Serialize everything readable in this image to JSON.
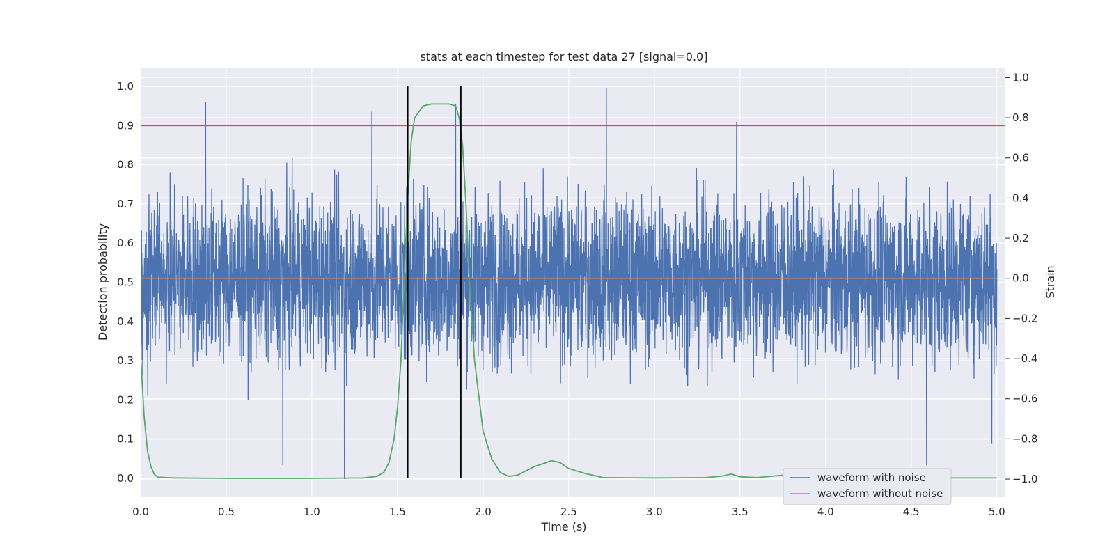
{
  "chart_data": {
    "type": "line",
    "title": "stats at each timestep for test data 27 [signal=0.0]",
    "xlabel": "Time (s)",
    "ylabel_left": "Detection probability",
    "ylabel_right": "Strain",
    "xlim": [
      0.0,
      5.05
    ],
    "ylim_left": [
      -0.048,
      1.048
    ],
    "ylim_right": [
      -1.09,
      1.05
    ],
    "x_ticks": [
      "0.0",
      "0.5",
      "1.0",
      "1.5",
      "2.0",
      "2.5",
      "3.0",
      "3.5",
      "4.0",
      "4.5",
      "5.0"
    ],
    "y_ticks_left": [
      "0.0",
      "0.1",
      "0.2",
      "0.3",
      "0.4",
      "0.5",
      "0.6",
      "0.7",
      "0.8",
      "0.9",
      "1.0"
    ],
    "y_ticks_right": [
      "−1.0",
      "−0.8",
      "−0.6",
      "−0.4",
      "−0.2",
      "0.0",
      "0.2",
      "0.4",
      "0.6",
      "0.8",
      "1.0"
    ],
    "grid": true,
    "legend_position": "lower-right",
    "threshold_line": {
      "axis": "left",
      "y": 0.9,
      "color": "#c44e52"
    },
    "vertical_markers": {
      "x": [
        1.56,
        1.87
      ],
      "color": "#000000"
    },
    "series": [
      {
        "name": "waveform with noise",
        "axis": "right",
        "color": "#4c72b0",
        "description_of_shape": "dense noise between about -0.95 and 1.0 strain",
        "spikes": [
          [
            0.38,
            0.88
          ],
          [
            1.19,
            -1.0
          ],
          [
            1.35,
            0.83
          ],
          [
            1.84,
            0.87
          ],
          [
            2.72,
            0.95
          ],
          [
            3.48,
            0.78
          ],
          [
            4.59,
            -0.93
          ],
          [
            4.97,
            -0.82
          ],
          [
            0.83,
            -0.93
          ]
        ]
      },
      {
        "name": "waveform without noise",
        "axis": "right",
        "color": "#dd8452",
        "x": [
          0.0,
          5.0
        ],
        "y": [
          0.0,
          0.0
        ]
      },
      {
        "axis": "left",
        "color": "#55a868",
        "x": [
          0.0,
          0.02,
          0.04,
          0.06,
          0.08,
          0.1,
          0.2,
          0.5,
          1.0,
          1.3,
          1.38,
          1.42,
          1.45,
          1.48,
          1.5,
          1.52,
          1.54,
          1.56,
          1.58,
          1.6,
          1.65,
          1.7,
          1.8,
          1.84,
          1.86,
          1.88,
          1.9,
          1.92,
          1.95,
          2.0,
          2.05,
          2.1,
          2.15,
          2.2,
          2.3,
          2.4,
          2.45,
          2.5,
          2.6,
          2.7,
          3.0,
          3.3,
          3.4,
          3.45,
          3.5,
          3.6,
          3.75,
          3.8,
          4.0,
          4.5,
          5.0
        ],
        "y": [
          0.31,
          0.16,
          0.07,
          0.03,
          0.01,
          0.003,
          0.001,
          0.0,
          0.0,
          0.001,
          0.005,
          0.015,
          0.04,
          0.1,
          0.18,
          0.3,
          0.52,
          0.72,
          0.86,
          0.92,
          0.95,
          0.955,
          0.955,
          0.95,
          0.92,
          0.85,
          0.7,
          0.5,
          0.3,
          0.12,
          0.05,
          0.015,
          0.005,
          0.008,
          0.03,
          0.045,
          0.04,
          0.025,
          0.012,
          0.002,
          0.001,
          0.002,
          0.006,
          0.011,
          0.004,
          0.002,
          0.008,
          0.006,
          0.002,
          0.001,
          0.001
        ]
      }
    ]
  }
}
